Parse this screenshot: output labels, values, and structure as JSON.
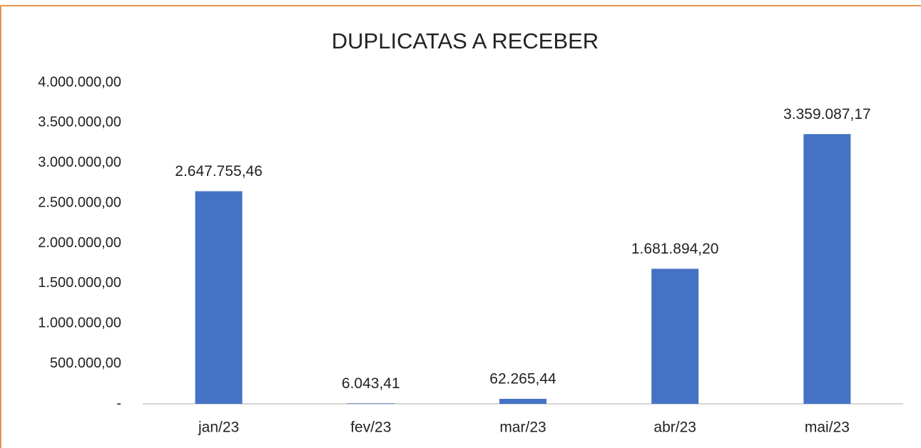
{
  "chart_data": {
    "type": "bar",
    "title": "DUPLICATAS A RECEBER",
    "categories": [
      "jan/23",
      "fev/23",
      "mar/23",
      "abr/23",
      "mai/23"
    ],
    "values": [
      2647755.46,
      6043.41,
      62265.44,
      1681894.2,
      3359087.17
    ],
    "value_labels": [
      "2.647.755,46",
      "6.043,41",
      "62.265,44",
      "1.681.894,20",
      "3.359.087,17"
    ],
    "color": "#4472c4",
    "ylim": [
      0,
      4000000
    ],
    "yticks": [
      {
        "value": 0,
        "label": "-"
      },
      {
        "value": 500000,
        "label": "500.000,00"
      },
      {
        "value": 1000000,
        "label": "1.000.000,00"
      },
      {
        "value": 1500000,
        "label": "1.500.000,00"
      },
      {
        "value": 2000000,
        "label": "2.000.000,00"
      },
      {
        "value": 2500000,
        "label": "2.500.000,00"
      },
      {
        "value": 3000000,
        "label": "3.000.000,00"
      },
      {
        "value": 3500000,
        "label": "3.500.000,00"
      },
      {
        "value": 4000000,
        "label": "4.000.000,00"
      }
    ],
    "grid": false
  }
}
